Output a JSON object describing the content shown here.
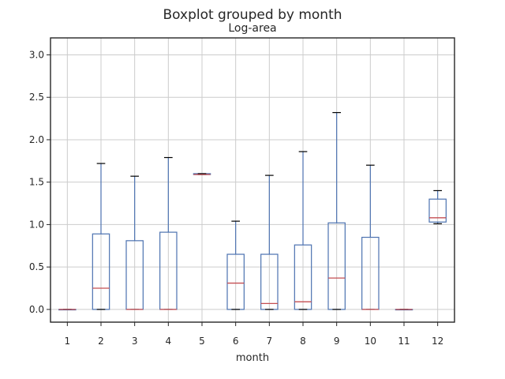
{
  "chart_data": {
    "type": "boxplot",
    "suptitle": "Boxplot grouped by month",
    "title": "Log-area",
    "xlabel": "month",
    "ylabel": "",
    "ylim": [
      -0.15,
      3.2
    ],
    "yticks": [
      "0.0",
      "0.5",
      "1.0",
      "1.5",
      "2.0",
      "2.5",
      "3.0"
    ],
    "ytick_values": [
      0,
      0.5,
      1.0,
      1.5,
      2.0,
      2.5,
      3.0
    ],
    "grid": true,
    "colors": {
      "box": "#4c72b0",
      "median": "#c44e52",
      "cap": "#000000",
      "grid": "#cccccc"
    },
    "categories": [
      "1",
      "2",
      "3",
      "4",
      "5",
      "6",
      "7",
      "8",
      "9",
      "10",
      "11",
      "12"
    ],
    "boxes": [
      {
        "whislo": 0.0,
        "q1": 0.0,
        "med": 0.0,
        "q3": 0.0,
        "whishi": 0.0
      },
      {
        "whislo": 0.0,
        "q1": 0.0,
        "med": 0.25,
        "q3": 0.89,
        "whishi": 1.72
      },
      {
        "whislo": 0.0,
        "q1": 0.0,
        "med": 0.0,
        "q3": 0.81,
        "whishi": 1.57
      },
      {
        "whislo": 0.0,
        "q1": 0.0,
        "med": 0.0,
        "q3": 0.91,
        "whishi": 1.79
      },
      {
        "whislo": 1.59,
        "q1": 1.59,
        "med": 1.59,
        "q3": 1.6,
        "whishi": 1.6
      },
      {
        "whislo": 0.0,
        "q1": 0.0,
        "med": 0.31,
        "q3": 0.65,
        "whishi": 1.04
      },
      {
        "whislo": 0.0,
        "q1": 0.0,
        "med": 0.07,
        "q3": 0.65,
        "whishi": 1.58
      },
      {
        "whislo": 0.0,
        "q1": 0.0,
        "med": 0.09,
        "q3": 0.76,
        "whishi": 1.86
      },
      {
        "whislo": 0.0,
        "q1": 0.0,
        "med": 0.37,
        "q3": 1.02,
        "whishi": 2.32
      },
      {
        "whislo": 0.0,
        "q1": 0.0,
        "med": 0.0,
        "q3": 0.85,
        "whishi": 1.7
      },
      {
        "whislo": 0.0,
        "q1": 0.0,
        "med": 0.0,
        "q3": 0.0,
        "whishi": 0.0
      },
      {
        "whislo": 1.01,
        "q1": 1.03,
        "med": 1.08,
        "q3": 1.3,
        "whishi": 1.4
      }
    ]
  }
}
